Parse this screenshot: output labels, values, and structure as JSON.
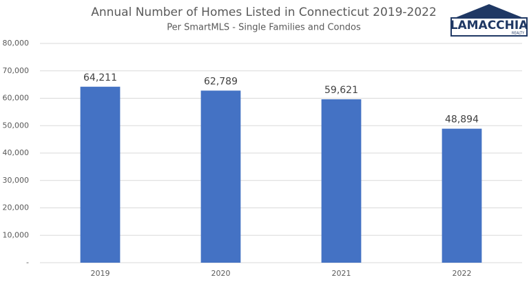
{
  "chart_data": {
    "type": "bar",
    "title": "Annual Number of Homes Listed in Connecticut 2019-2022",
    "subtitle": "Per SmartMLS - Single Families and Condos",
    "logo": {
      "name": "LAMACCHIA",
      "tagline": "REALTY"
    },
    "categories": [
      "2019",
      "2020",
      "2021",
      "2022"
    ],
    "values": [
      64211,
      62789,
      59621,
      48894
    ],
    "value_labels": [
      "64,211",
      "62,789",
      "59,621",
      "48,894"
    ],
    "color": "#4472c4",
    "ylim": [
      0,
      80000
    ],
    "yticks": [
      {
        "value": 0,
        "label": "-"
      },
      {
        "value": 10000,
        "label": "10,000"
      },
      {
        "value": 20000,
        "label": "20,000"
      },
      {
        "value": 30000,
        "label": "30,000"
      },
      {
        "value": 40000,
        "label": "40,000"
      },
      {
        "value": 50000,
        "label": "50,000"
      },
      {
        "value": 60000,
        "label": "60,000"
      },
      {
        "value": 70000,
        "label": "70,000"
      },
      {
        "value": 80000,
        "label": "80,000"
      }
    ],
    "grid": true
  }
}
